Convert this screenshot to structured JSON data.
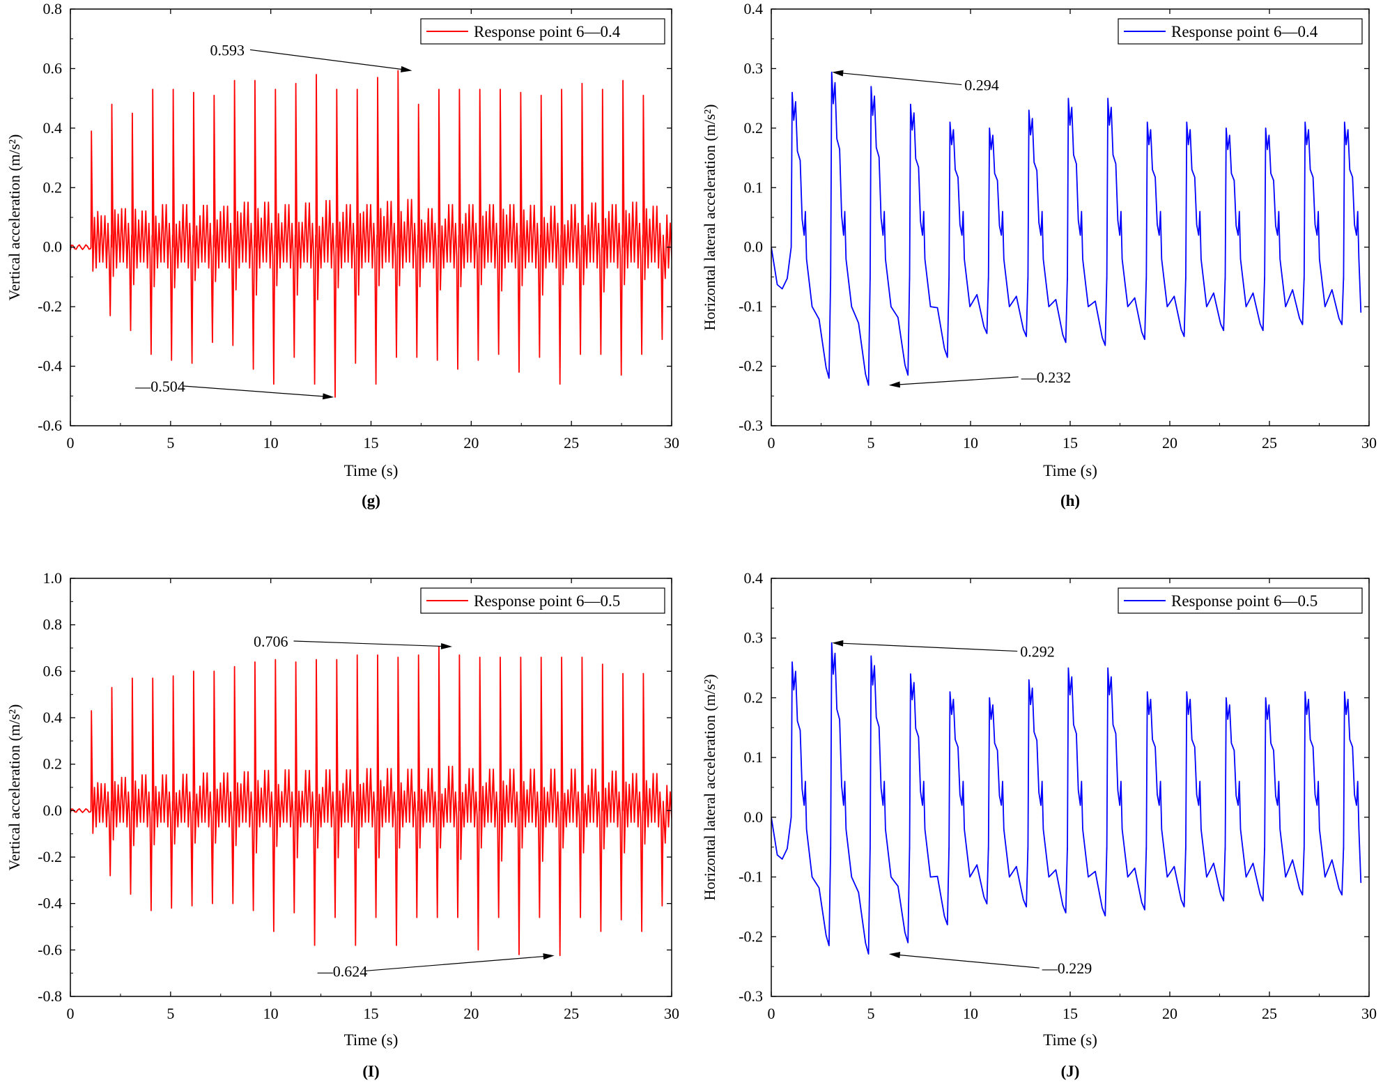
{
  "chart_data": [
    {
      "id": "g",
      "type": "line",
      "panel_label": "(g)",
      "xlabel": "Time (s)",
      "ylabel": "Vertical acceleration (m/s²)",
      "xlim": [
        0,
        30
      ],
      "ylim": [
        -0.6,
        0.8
      ],
      "xticks": [
        0,
        5,
        10,
        15,
        20,
        25,
        30
      ],
      "yticks": [
        -0.6,
        -0.4,
        -0.2,
        0.0,
        0.2,
        0.4,
        0.6,
        0.8
      ],
      "ytick_labels": [
        "-0.6",
        "-0.4",
        "-0.2",
        "0.0",
        "0.2",
        "0.4",
        "0.6",
        "0.8"
      ],
      "legend": "Response point 6—0.4",
      "legend_position": "top-right",
      "color": "#ff0000",
      "series": [
        {
          "name": "Response point 6—0.4",
          "kind": "vertical",
          "onset": 1.05,
          "period": 1.02,
          "peaks": [
            0.39,
            0.48,
            0.45,
            0.53,
            0.53,
            0.52,
            0.51,
            0.56,
            0.56,
            0.53,
            0.55,
            0.58,
            0.53,
            0.53,
            0.57,
            0.593,
            0.48,
            0.53,
            0.53,
            0.53,
            0.53,
            0.52,
            0.51,
            0.53,
            0.55,
            0.53,
            0.56,
            0.51
          ],
          "troughs": [
            -0.23,
            -0.28,
            -0.36,
            -0.38,
            -0.39,
            -0.32,
            -0.33,
            -0.41,
            -0.46,
            -0.37,
            -0.46,
            -0.504,
            -0.39,
            -0.46,
            -0.37,
            -0.37,
            -0.38,
            -0.41,
            -0.38,
            -0.36,
            -0.42,
            -0.37,
            -0.46,
            -0.36,
            -0.36,
            -0.43,
            -0.36,
            -0.31,
            -0.3
          ]
        }
      ],
      "annotations": [
        {
          "text": "0.593",
          "x": 17.05,
          "y": 0.593
        },
        {
          "text": "—0.504",
          "x": 13.15,
          "y": -0.504
        }
      ]
    },
    {
      "id": "h",
      "type": "line",
      "panel_label": "(h)",
      "xlabel": "Time (s)",
      "ylabel": "Horizontal lateral acceleration (m/s²)",
      "xlim": [
        0,
        30
      ],
      "ylim": [
        -0.3,
        0.4
      ],
      "xticks": [
        0,
        5,
        10,
        15,
        20,
        25,
        30
      ],
      "yticks": [
        -0.3,
        -0.2,
        -0.1,
        0.0,
        0.1,
        0.2,
        0.3,
        0.4
      ],
      "ytick_labels": [
        "-0.3",
        "-0.2",
        "-0.1",
        "0.0",
        "0.1",
        "0.2",
        "0.3",
        "0.4"
      ],
      "legend": "Response point 6—0.4",
      "legend_position": "top-right",
      "color": "#0000ff",
      "series": [
        {
          "name": "Response point 6—0.4",
          "kind": "lateral",
          "start_dip": -0.07,
          "period": 1.98,
          "peaks": [
            0.26,
            0.294,
            0.27,
            0.24,
            0.21,
            0.2,
            0.23,
            0.25,
            0.25,
            0.21,
            0.21,
            0.2,
            0.2,
            0.21,
            0.21,
            0.21
          ],
          "troughs": [
            -0.22,
            -0.232,
            -0.215,
            -0.185,
            -0.145,
            -0.15,
            -0.16,
            -0.165,
            -0.155,
            -0.15,
            -0.14,
            -0.14,
            -0.13,
            -0.13
          ],
          "end_value": -0.11
        }
      ],
      "annotations": [
        {
          "text": "0.294",
          "x": 3.05,
          "y": 0.294
        },
        {
          "text": "—0.232",
          "x": 5.9,
          "y": -0.232
        }
      ]
    },
    {
      "id": "I",
      "type": "line",
      "panel_label": "(I)",
      "xlabel": "Time (s)",
      "ylabel": "Vertical acceleration (m/s²)",
      "xlim": [
        0,
        30
      ],
      "ylim": [
        -0.8,
        1.0
      ],
      "xticks": [
        0,
        5,
        10,
        15,
        20,
        25,
        30
      ],
      "yticks": [
        -0.8,
        -0.6,
        -0.4,
        -0.2,
        0.0,
        0.2,
        0.4,
        0.6,
        0.8,
        1.0
      ],
      "ytick_labels": [
        "-0.8",
        "-0.6",
        "-0.4",
        "-0.2",
        "0.0",
        "0.2",
        "0.4",
        "0.6",
        "0.8",
        "1.0"
      ],
      "legend": "Response point 6—0.5",
      "legend_position": "top-right",
      "color": "#ff0000",
      "series": [
        {
          "name": "Response point 6—0.5",
          "kind": "vertical",
          "onset": 1.05,
          "period": 1.02,
          "peaks": [
            0.43,
            0.53,
            0.57,
            0.57,
            0.58,
            0.6,
            0.6,
            0.62,
            0.64,
            0.65,
            0.64,
            0.65,
            0.65,
            0.67,
            0.67,
            0.66,
            0.67,
            0.706,
            0.67,
            0.66,
            0.66,
            0.66,
            0.66,
            0.66,
            0.66,
            0.63,
            0.59,
            0.59
          ],
          "troughs": [
            -0.28,
            -0.36,
            -0.43,
            -0.42,
            -0.41,
            -0.4,
            -0.4,
            -0.43,
            -0.52,
            -0.44,
            -0.58,
            -0.46,
            -0.58,
            -0.46,
            -0.58,
            -0.46,
            -0.46,
            -0.46,
            -0.6,
            -0.46,
            -0.62,
            -0.46,
            -0.624,
            -0.46,
            -0.52,
            -0.47,
            -0.52,
            -0.41,
            -0.4
          ]
        }
      ],
      "annotations": [
        {
          "text": "0.706",
          "x": 19.05,
          "y": 0.706
        },
        {
          "text": "—0.624",
          "x": 24.15,
          "y": -0.624
        }
      ]
    },
    {
      "id": "J",
      "type": "line",
      "panel_label": "(J)",
      "xlabel": "Time (s)",
      "ylabel": "Horizontal lateral acceleration (m/s²)",
      "xlim": [
        0,
        30
      ],
      "ylim": [
        -0.3,
        0.4
      ],
      "xticks": [
        0,
        5,
        10,
        15,
        20,
        25,
        30
      ],
      "yticks": [
        -0.3,
        -0.2,
        -0.1,
        0.0,
        0.1,
        0.2,
        0.3,
        0.4
      ],
      "ytick_labels": [
        "-0.3",
        "-0.2",
        "-0.1",
        "0.0",
        "0.1",
        "0.2",
        "0.3",
        "0.4"
      ],
      "legend": "Response point 6—0.5",
      "legend_position": "top-right",
      "color": "#0000ff",
      "series": [
        {
          "name": "Response point 6—0.5",
          "kind": "lateral",
          "start_dip": -0.07,
          "period": 1.98,
          "peaks": [
            0.26,
            0.292,
            0.27,
            0.24,
            0.21,
            0.2,
            0.23,
            0.25,
            0.25,
            0.21,
            0.21,
            0.2,
            0.2,
            0.21,
            0.21,
            0.21
          ],
          "troughs": [
            -0.215,
            -0.229,
            -0.21,
            -0.18,
            -0.145,
            -0.15,
            -0.16,
            -0.165,
            -0.155,
            -0.15,
            -0.14,
            -0.14,
            -0.13,
            -0.13
          ],
          "end_value": -0.11
        }
      ],
      "annotations": [
        {
          "text": "0.292",
          "x": 3.05,
          "y": 0.292
        },
        {
          "text": "—0.229",
          "x": 5.9,
          "y": -0.229
        }
      ]
    }
  ]
}
